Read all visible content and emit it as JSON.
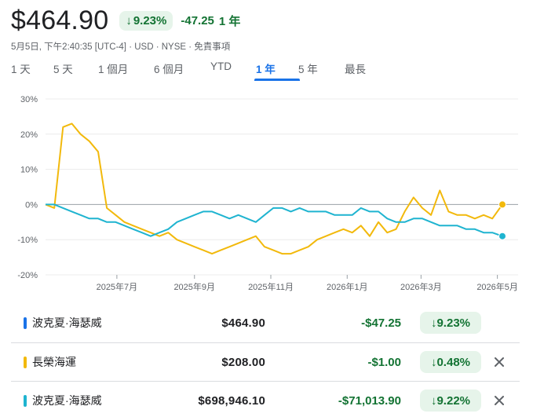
{
  "header": {
    "price": "$464.90",
    "change_pct": "9.23%",
    "change_abs": "-47.25",
    "change_period": "1 年"
  },
  "meta": "5月5日, 下午2:40:35 [UTC-4] · USD · NYSE · 免責事項",
  "tabs": [
    {
      "label": "1 天",
      "active": false
    },
    {
      "label": "5 天",
      "active": false
    },
    {
      "label": "1 個月",
      "active": false
    },
    {
      "label": "6 個月",
      "active": false
    },
    {
      "label": "YTD",
      "active": false
    },
    {
      "label": "1 年",
      "active": true
    },
    {
      "label": "5 年",
      "active": false
    },
    {
      "label": "最長",
      "active": false
    }
  ],
  "chart_data": {
    "type": "line",
    "yticks": [
      "30%",
      "20%",
      "10%",
      "0%",
      "-10%",
      "-20%"
    ],
    "ylim": [
      -20,
      30
    ],
    "xticks": [
      "2025年7月",
      "2025年9月",
      "2025年11月",
      "2026年1月",
      "2026年3月",
      "2026年5月"
    ],
    "x": [
      "2025-05-05",
      "2025-05-12",
      "2025-05-19",
      "2025-05-26",
      "2025-06-02",
      "2025-06-09",
      "2025-06-16",
      "2025-06-23",
      "2025-06-30",
      "2025-07-07",
      "2025-07-14",
      "2025-07-21",
      "2025-07-28",
      "2025-08-04",
      "2025-08-11",
      "2025-08-18",
      "2025-08-25",
      "2025-09-01",
      "2025-09-08",
      "2025-09-15",
      "2025-09-22",
      "2025-09-29",
      "2025-10-06",
      "2025-10-13",
      "2025-10-20",
      "2025-10-27",
      "2025-11-03",
      "2025-11-10",
      "2025-11-17",
      "2025-11-24",
      "2025-12-01",
      "2025-12-08",
      "2025-12-15",
      "2025-12-22",
      "2025-12-29",
      "2026-01-05",
      "2026-01-12",
      "2026-01-19",
      "2026-01-26",
      "2026-02-02",
      "2026-02-09",
      "2026-02-16",
      "2026-02-23",
      "2026-03-02",
      "2026-03-09",
      "2026-03-16",
      "2026-03-23",
      "2026-03-30",
      "2026-04-06",
      "2026-04-13",
      "2026-04-20",
      "2026-04-27",
      "2026-05-05"
    ],
    "series": [
      {
        "name": "長榮海運",
        "color": "#f2b90c",
        "values": [
          0,
          -1,
          22,
          23,
          20,
          18,
          15,
          -1,
          -3,
          -5,
          -6,
          -7,
          -8,
          -9,
          -8,
          -10,
          -11,
          -12,
          -13,
          -14,
          -13,
          -12,
          -11,
          -10,
          -9,
          -12,
          -13,
          -14,
          -14,
          -13,
          -12,
          -10,
          -9,
          -8,
          -7,
          -8,
          -6,
          -9,
          -5,
          -8,
          -7,
          -2,
          2,
          -1,
          -3,
          4,
          -2,
          -3,
          -3,
          -4,
          -3,
          -4,
          0
        ]
      },
      {
        "name": "波克夏·海瑟威",
        "color": "#1fb4d0",
        "values": [
          0,
          0,
          -1,
          -2,
          -3,
          -4,
          -4,
          -5,
          -5,
          -6,
          -7,
          -8,
          -9,
          -8,
          -7,
          -5,
          -4,
          -3,
          -2,
          -2,
          -3,
          -4,
          -3,
          -4,
          -5,
          -3,
          -1,
          -1,
          -2,
          -1,
          -2,
          -2,
          -2,
          -3,
          -3,
          -3,
          -1,
          -2,
          -2,
          -4,
          -5,
          -5,
          -4,
          -4,
          -5,
          -6,
          -6,
          -6,
          -7,
          -7,
          -8,
          -8,
          -9
        ]
      }
    ],
    "end_markers": true,
    "baseline": 0,
    "grid": true
  },
  "legend": [
    {
      "name": "波克夏·海瑟威",
      "color": "#1a73e8",
      "price": "$464.90",
      "abs": "-$47.25",
      "pct": "9.23%",
      "removable": false
    },
    {
      "name": "長榮海運",
      "color": "#f2b90c",
      "price": "$208.00",
      "abs": "-$1.00",
      "pct": "0.48%",
      "removable": true
    },
    {
      "name": "波克夏·海瑟威",
      "color": "#1fb4d0",
      "price": "$698,946.10",
      "abs": "-$71,013.90",
      "pct": "9.22%",
      "removable": true
    }
  ]
}
